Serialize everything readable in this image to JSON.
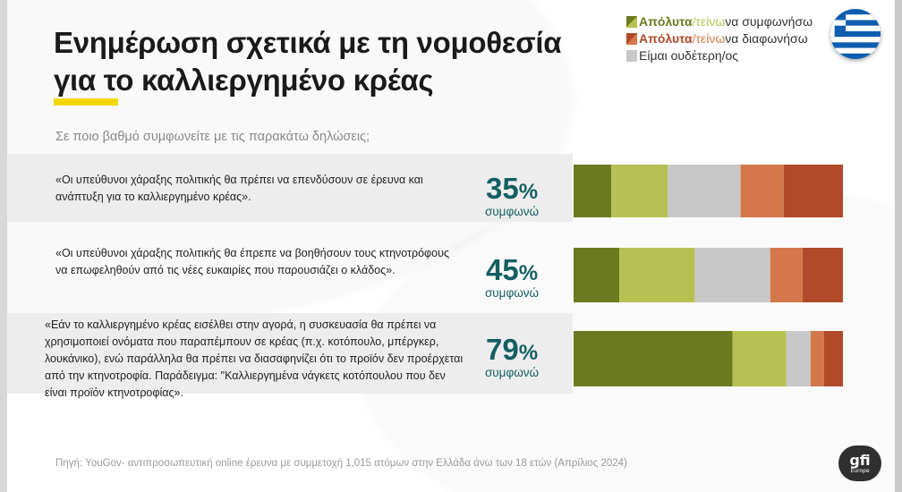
{
  "title_line1": "Ενημέρωση σχετικά με τη νομοθεσία",
  "title_line2": "για το καλλιεργημένο κρέας",
  "subtitle": "Σε ποιο βαθμό συμφωνείτε με τις παρακάτω δηλώσεις;",
  "legend": [
    {
      "strong": "Απόλυτα",
      "slash": "/",
      "light": "τείνω",
      "rest": " να συμφωνήσω",
      "strong_color": "#6b7a1e",
      "light_color": "#b7c153"
    },
    {
      "strong": "Απόλυτα",
      "slash": "/",
      "light": "τείνω",
      "rest": " να διαφωνήσω",
      "strong_color": "#b04a2a",
      "light_color": "#d4784c"
    },
    {
      "strong": "",
      "slash": "",
      "light": "",
      "rest": "Είμαι ουδέτερη/ος",
      "strong_color": "#c8c8c8",
      "light_color": "#c8c8c8"
    }
  ],
  "rows": [
    {
      "statement": "«Οι υπεύθυνοι χάραξης πολιτικής θα πρέπει να επενδύσουν σε έρευνα και ανάπτυξη για το καλλιεργημένο κρέας».",
      "pct_value": "35",
      "pct_sign": "%",
      "pct_label": "συμφωνώ"
    },
    {
      "statement": "«Οι υπεύθυνοι χάραξης πολιτικής θα έπρεπε να βοηθήσουν τους κτηνοτρόφους να επωφεληθούν από τις νέες ευκαιρίες που παρουσιάζει ο κλάδος».",
      "pct_value": "45",
      "pct_sign": "%",
      "pct_label": "συμφωνώ"
    },
    {
      "statement": "«Εάν το καλλιεργημένο κρέας εισέλθει στην αγορά, η συσκευασία θα πρέπει να χρησιμοποιεί ονόματα που παραπέμπουν σε κρέας (π.χ. κοτόπουλο, μπέργκερ, λουκάνικο), ενώ παράλληλα θα πρέπει να διασαφηνίζει ότι το προϊόν δεν προέρχεται από την κτηνοτροφία. Παράδειγμα: \"Καλλιεργημένα νάγκετς κοτόπουλου που δεν είναι προϊόν κτηνοτροφίας».",
      "pct_value": "79",
      "pct_sign": "%",
      "pct_label": "συμφωνώ"
    }
  ],
  "chart_data": {
    "type": "bar",
    "orientation": "horizontal-stacked-100",
    "categories": [
      "statement-1",
      "statement-2",
      "statement-3"
    ],
    "series": [
      {
        "name": "Απόλυτα να συμφωνήσω",
        "color": "#6b7a1e",
        "values": [
          14,
          17,
          59
        ]
      },
      {
        "name": "τείνω να συμφωνήσω",
        "color": "#b7c153",
        "values": [
          21,
          28,
          20
        ]
      },
      {
        "name": "Είμαι ουδέτερη/ος",
        "color": "#c8c8c8",
        "values": [
          27,
          28,
          9
        ]
      },
      {
        "name": "τείνω να διαφωνήσω",
        "color": "#d4784c",
        "values": [
          16,
          12,
          5
        ]
      },
      {
        "name": "Απόλυτα να διαφωνήσω",
        "color": "#b04a2a",
        "values": [
          22,
          15,
          7
        ]
      }
    ],
    "xlim": [
      0,
      100
    ],
    "grid": false,
    "legend_position": "top-right"
  },
  "flag_icon": "greece-flag-icon",
  "source": "Πηγή: YouGov- αντιπροσωπευτική online έρευνα με συμμετοχή 1,015 ατόμων στην Ελλάδα άνω των 18 ετών (Απρίλιος 2024)",
  "logo": {
    "main": "gfi",
    "sub": "Europe"
  }
}
